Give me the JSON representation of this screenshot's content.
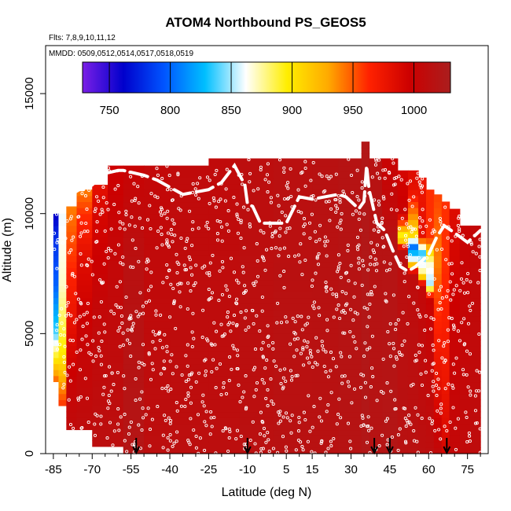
{
  "chart_data": {
    "type": "heatmap",
    "title": "ATOM4 Northbound PS_GEOS5",
    "subtitle_flights": "Flts: 7,8,9,10,11,12",
    "subtitle_dates": "MMDD: 0509,0512,0514,0517,0518,0519",
    "xlabel": "Latitude (deg N)",
    "ylabel": "Altitude (m)",
    "xlim": [
      -88,
      83
    ],
    "ylim": [
      0,
      17000
    ],
    "x_ticks": [
      -85,
      -70,
      -55,
      -40,
      -25,
      -10,
      5,
      15,
      30,
      45,
      60,
      75
    ],
    "x_minor_ticks": [
      -80,
      -75,
      -65,
      -60,
      -50,
      -45,
      -35,
      -30,
      -20,
      -15,
      -5,
      0,
      10,
      20,
      25,
      35,
      40,
      50,
      55,
      65,
      70,
      80
    ],
    "y_ticks": [
      0,
      5000,
      10000,
      15000
    ],
    "colorbar": {
      "min": 728,
      "max": 1030,
      "ticks": [
        750,
        800,
        850,
        900,
        950,
        1000
      ],
      "colors": [
        "#7a1fe6",
        "#0000cc",
        "#0055ff",
        "#00bfff",
        "#ffffff",
        "#ffee00",
        "#ffaa00",
        "#ff2200",
        "#cc0000",
        "#aa1e1e"
      ]
    },
    "columns": [
      {
        "x0": -85,
        "x1": -83,
        "top": 10000,
        "bottom": 3000,
        "profile": [
          [
            0,
            1012
          ],
          [
            2000,
            990
          ],
          [
            3000,
            950
          ],
          [
            5000,
            840
          ],
          [
            7000,
            800
          ],
          [
            9000,
            780
          ],
          [
            10000,
            760
          ]
        ]
      },
      {
        "x0": -83,
        "x1": -80,
        "top": 10000,
        "bottom": 2000,
        "profile": [
          [
            0,
            1013
          ],
          [
            2000,
            960
          ],
          [
            4000,
            900
          ],
          [
            7000,
            870
          ],
          [
            10000,
            860
          ]
        ]
      },
      {
        "x0": -80,
        "x1": -76,
        "top": 10300,
        "bottom": 1000,
        "profile": [
          [
            0,
            1013
          ],
          [
            3000,
            1000
          ],
          [
            6000,
            975
          ],
          [
            8000,
            960
          ],
          [
            10300,
            940
          ]
        ]
      },
      {
        "x0": -76,
        "x1": -70,
        "top": 11000,
        "bottom": 1000,
        "profile": [
          [
            0,
            1013
          ],
          [
            5000,
            1000
          ],
          [
            8000,
            985
          ],
          [
            10000,
            960
          ],
          [
            11000,
            940
          ]
        ]
      },
      {
        "x0": -70,
        "x1": -64,
        "top": 11200,
        "bottom": 300,
        "profile": [
          [
            0,
            1013
          ],
          [
            6000,
            1005
          ],
          [
            10000,
            990
          ],
          [
            11200,
            980
          ]
        ]
      },
      {
        "x0": -64,
        "x1": -58,
        "top": 12000,
        "bottom": 300,
        "profile": [
          [
            0,
            1013
          ],
          [
            8000,
            1005
          ],
          [
            12000,
            995
          ]
        ]
      },
      {
        "x0": -58,
        "x1": -50,
        "top": 12000,
        "bottom": 0,
        "profile": [
          [
            0,
            1020
          ],
          [
            8000,
            1015
          ],
          [
            12000,
            1000
          ]
        ]
      },
      {
        "x0": -50,
        "x1": -40,
        "top": 12000,
        "bottom": 0,
        "profile": [
          [
            0,
            1012
          ],
          [
            12000,
            1005
          ]
        ]
      },
      {
        "x0": -40,
        "x1": -25,
        "top": 12000,
        "bottom": 0,
        "profile": [
          [
            0,
            1012
          ],
          [
            12000,
            1008
          ]
        ]
      },
      {
        "x0": -25,
        "x1": -13,
        "top": 12300,
        "bottom": 0,
        "profile": [
          [
            0,
            1012
          ],
          [
            12300,
            1008
          ]
        ]
      },
      {
        "x0": -13,
        "x1": 0,
        "top": 12300,
        "bottom": 0,
        "profile": [
          [
            0,
            1014
          ],
          [
            12300,
            1012
          ]
        ]
      },
      {
        "x0": 0,
        "x1": 15,
        "top": 12300,
        "bottom": 0,
        "profile": [
          [
            0,
            1016
          ],
          [
            12300,
            1014
          ]
        ]
      },
      {
        "x0": 15,
        "x1": 25,
        "top": 12300,
        "bottom": 0,
        "profile": [
          [
            0,
            1016
          ],
          [
            12300,
            1016
          ]
        ]
      },
      {
        "x0": 25,
        "x1": 34,
        "top": 12300,
        "bottom": 0,
        "profile": [
          [
            0,
            1018
          ],
          [
            12300,
            1018
          ]
        ]
      },
      {
        "x0": 34,
        "x1": 37,
        "top": 13000,
        "bottom": 0,
        "profile": [
          [
            0,
            1022
          ],
          [
            13000,
            1022
          ]
        ]
      },
      {
        "x0": 37,
        "x1": 42,
        "top": 12300,
        "bottom": 0,
        "profile": [
          [
            0,
            1018
          ],
          [
            10000,
            1018
          ],
          [
            12300,
            1016
          ]
        ]
      },
      {
        "x0": 42,
        "x1": 48,
        "top": 12300,
        "bottom": 0,
        "profile": [
          [
            0,
            1020
          ],
          [
            9000,
            1018
          ],
          [
            10000,
            1008
          ],
          [
            12300,
            1000
          ]
        ]
      },
      {
        "x0": 48,
        "x1": 52,
        "top": 11800,
        "bottom": 0,
        "profile": [
          [
            0,
            1016
          ],
          [
            8500,
            1012
          ],
          [
            9000,
            880
          ],
          [
            10000,
            1000
          ],
          [
            11800,
            990
          ]
        ]
      },
      {
        "x0": 52,
        "x1": 56,
        "top": 11800,
        "bottom": 0,
        "profile": [
          [
            0,
            1015
          ],
          [
            7500,
            1010
          ],
          [
            8200,
            840
          ],
          [
            8700,
            800
          ],
          [
            9000,
            900
          ],
          [
            11000,
            980
          ],
          [
            11800,
            985
          ]
        ]
      },
      {
        "x0": 56,
        "x1": 59,
        "top": 11500,
        "bottom": 0,
        "profile": [
          [
            0,
            1013
          ],
          [
            7000,
            1005
          ],
          [
            7500,
            880
          ],
          [
            8500,
            830
          ],
          [
            9000,
            980
          ],
          [
            11500,
            975
          ]
        ]
      },
      {
        "x0": 59,
        "x1": 62,
        "top": 11000,
        "bottom": 0,
        "profile": [
          [
            0,
            1012
          ],
          [
            6500,
            1000
          ],
          [
            7000,
            850
          ],
          [
            8000,
            870
          ],
          [
            9000,
            960
          ],
          [
            11000,
            960
          ]
        ]
      },
      {
        "x0": 62,
        "x1": 65,
        "top": 10800,
        "bottom": 0,
        "profile": [
          [
            0,
            1008
          ],
          [
            3000,
            980
          ],
          [
            6000,
            960
          ],
          [
            8000,
            940
          ],
          [
            10800,
            955
          ]
        ]
      },
      {
        "x0": 65,
        "x1": 68,
        "top": 10500,
        "bottom": 0,
        "profile": [
          [
            0,
            990
          ],
          [
            3000,
            975
          ],
          [
            6000,
            965
          ],
          [
            8000,
            960
          ],
          [
            10500,
            960
          ]
        ]
      },
      {
        "x0": 68,
        "x1": 72,
        "top": 10200,
        "bottom": 0,
        "profile": [
          [
            0,
            1005
          ],
          [
            5000,
            1000
          ],
          [
            10200,
            985
          ]
        ]
      },
      {
        "x0": 72,
        "x1": 76,
        "top": 9500,
        "bottom": 0,
        "profile": [
          [
            0,
            1008
          ],
          [
            9500,
            1000
          ]
        ]
      },
      {
        "x0": 76,
        "x1": 80,
        "top": 9500,
        "bottom": 0,
        "profile": [
          [
            0,
            1010
          ],
          [
            9500,
            1005
          ]
        ]
      }
    ],
    "flight_track": [
      [
        -85,
        10050
      ],
      [
        -83,
        10100
      ],
      [
        -81,
        10600
      ],
      [
        -78,
        10800
      ],
      [
        -75,
        11000
      ],
      [
        -73,
        11000
      ],
      [
        -70,
        11200
      ],
      [
        -67,
        11500
      ],
      [
        -64,
        11700
      ],
      [
        -60,
        11800
      ],
      [
        -58,
        11800
      ],
      [
        -50,
        11600
      ],
      [
        -45,
        11400
      ],
      [
        -40,
        11100
      ],
      [
        -35,
        10800
      ],
      [
        -30,
        10900
      ],
      [
        -25,
        11000
      ],
      [
        -20,
        11300
      ],
      [
        -15,
        12000
      ],
      [
        -11,
        11200
      ],
      [
        -10,
        10400
      ],
      [
        -8,
        10300
      ],
      [
        -5,
        9600
      ],
      [
        0,
        9600
      ],
      [
        5,
        9600
      ],
      [
        10,
        10700
      ],
      [
        15,
        10600
      ],
      [
        20,
        10700
      ],
      [
        25,
        10800
      ],
      [
        28,
        10700
      ],
      [
        30,
        10500
      ],
      [
        33,
        10200
      ],
      [
        35,
        10500
      ],
      [
        36,
        12000
      ],
      [
        37,
        11000
      ],
      [
        40,
        9600
      ],
      [
        43,
        9300
      ],
      [
        46,
        8500
      ],
      [
        49,
        7800
      ],
      [
        52,
        7600
      ],
      [
        55,
        7800
      ],
      [
        57,
        8000
      ],
      [
        60,
        8300
      ],
      [
        63,
        9000
      ],
      [
        66,
        9500
      ],
      [
        70,
        9200
      ],
      [
        75,
        8800
      ],
      [
        80,
        9300
      ]
    ],
    "markers": [
      -53,
      -10,
      39,
      45,
      67
    ]
  }
}
